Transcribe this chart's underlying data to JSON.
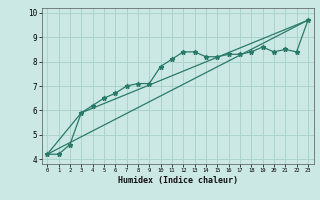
{
  "xlabel": "Humidex (Indice chaleur)",
  "bg_color": "#cce8e4",
  "grid_color": "#aad4cc",
  "line_color": "#2a7a6a",
  "xlim": [
    -0.5,
    23.5
  ],
  "ylim": [
    3.8,
    10.2
  ],
  "yticks": [
    4,
    5,
    6,
    7,
    8,
    9,
    10
  ],
  "xticks": [
    0,
    1,
    2,
    3,
    4,
    5,
    6,
    7,
    8,
    9,
    10,
    11,
    12,
    13,
    14,
    15,
    16,
    17,
    18,
    19,
    20,
    21,
    22,
    23
  ],
  "line1_x": [
    0,
    1,
    2,
    3,
    4,
    5,
    6,
    7,
    8,
    9,
    10,
    11,
    12,
    13,
    14,
    15,
    16,
    17,
    18,
    19,
    20,
    21,
    22,
    23
  ],
  "line1_y": [
    4.2,
    4.2,
    4.6,
    5.9,
    6.2,
    6.5,
    6.7,
    7.0,
    7.1,
    7.1,
    7.8,
    8.1,
    8.4,
    8.4,
    8.2,
    8.2,
    8.3,
    8.3,
    8.4,
    8.6,
    8.4,
    8.5,
    8.4,
    9.7
  ],
  "line2_x": [
    0,
    23
  ],
  "line2_y": [
    4.2,
    9.7
  ],
  "line3_x": [
    0,
    3,
    23
  ],
  "line3_y": [
    4.2,
    5.9,
    9.7
  ]
}
